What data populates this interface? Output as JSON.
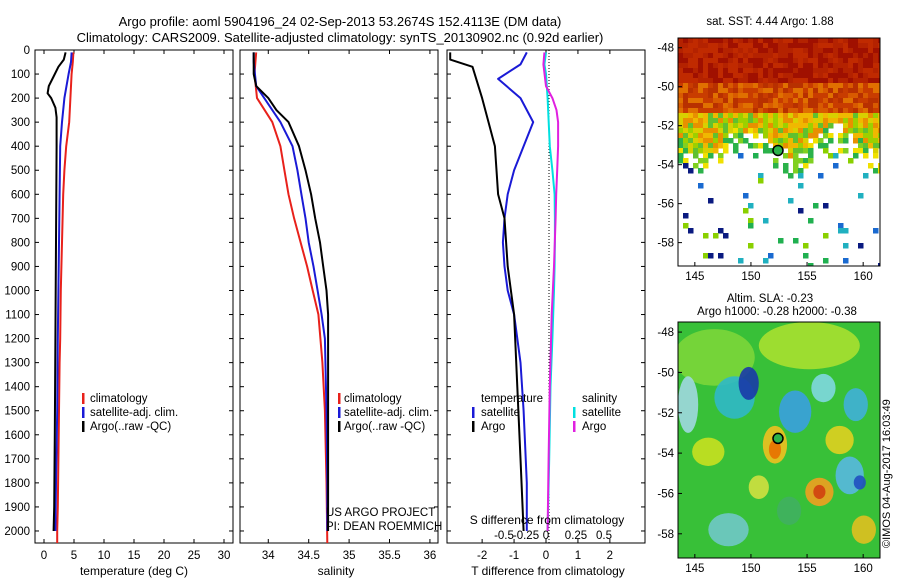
{
  "titles": {
    "line1": "Argo profile: aoml 5904196_24 02-Sep-2013 53.2674S 152.4113E (DM data)",
    "line2": "Climatology: CARS2009. Satellite-adjusted climatology: synTS_20130902.nc (0.92d earlier)"
  },
  "colors": {
    "climatology": "#e8211b",
    "satellite": "#1a1ad6",
    "argo": "#000000",
    "salinity_satellite": "#00e0e0",
    "salinity_argo": "#e020e0"
  },
  "chart_data": [
    {
      "type": "line",
      "panel": "temperature",
      "xlabel": "temperature (deg C)",
      "ylim": [
        0,
        2050
      ],
      "xlim": [
        -1.5,
        31.5
      ],
      "xticks": [
        "0",
        "5",
        "10",
        "15",
        "20",
        "25",
        "30"
      ],
      "yticks": [
        "0",
        "100",
        "200",
        "300",
        "400",
        "500",
        "600",
        "700",
        "800",
        "900",
        "1000",
        "1100",
        "1200",
        "1300",
        "1400",
        "1500",
        "1600",
        "1700",
        "1800",
        "1900",
        "2000"
      ],
      "legend": {
        "placement": "lower-right",
        "entries": [
          "climatology",
          "satellite-adj. clim.",
          "Argo(..raw -QC)"
        ]
      },
      "series": [
        {
          "name": "climatology",
          "color_key": "climatology",
          "x": [
            4.9,
            4.8,
            4.6,
            4.4,
            4.2,
            3.7,
            3.4,
            3.2,
            3.1,
            3.0,
            2.9,
            2.8,
            2.75,
            2.7,
            2.6,
            2.5,
            2.4,
            2.3,
            2.2,
            2.2
          ],
          "y": [
            10,
            50,
            100,
            200,
            300,
            400,
            500,
            600,
            700,
            800,
            900,
            1000,
            1100,
            1200,
            1300,
            1500,
            1700,
            1900,
            2000,
            2050
          ]
        },
        {
          "name": "satellite-adj. clim.",
          "color_key": "satellite",
          "x": [
            4.6,
            4.5,
            4.1,
            3.4,
            3.0,
            2.7,
            2.6,
            2.5,
            2.4,
            2.3,
            2.2,
            2.0,
            1.9
          ],
          "y": [
            10,
            50,
            100,
            200,
            300,
            400,
            600,
            800,
            1000,
            1200,
            1500,
            1800,
            2000
          ]
        },
        {
          "name": "Argo(..raw -QC)",
          "color_key": "argo",
          "x": [
            3.6,
            3.3,
            2.4,
            1.6,
            0.8,
            0.6,
            1.2,
            1.9,
            2.1,
            2.1,
            2.0,
            1.9,
            1.8,
            1.7,
            1.6
          ],
          "y": [
            10,
            40,
            70,
            110,
            150,
            180,
            200,
            240,
            280,
            400,
            800,
            1200,
            1600,
            1900,
            2000
          ]
        }
      ]
    },
    {
      "type": "line",
      "panel": "salinity",
      "xlabel": "salinity",
      "ylim": [
        0,
        2050
      ],
      "xlim": [
        33.65,
        36.1
      ],
      "xticks": [
        "34",
        "34.5",
        "35",
        "35.5",
        "36"
      ],
      "legend": {
        "placement": "lower-right",
        "entries": [
          "climatology",
          "satellite-adj. clim.",
          "Argo(..raw -QC)"
        ]
      },
      "annotation": [
        "US ARGO PROJECT",
        "PI: DEAN ROEMMICH"
      ],
      "series": [
        {
          "name": "climatology",
          "color_key": "climatology",
          "x": [
            33.85,
            33.84,
            33.83,
            33.86,
            34.05,
            34.15,
            34.2,
            34.25,
            34.32,
            34.4,
            34.48,
            34.55,
            34.62,
            34.67,
            34.7,
            34.72,
            34.73
          ],
          "y": [
            10,
            50,
            100,
            200,
            300,
            400,
            500,
            600,
            700,
            800,
            900,
            1000,
            1100,
            1300,
            1500,
            1800,
            2050
          ]
        },
        {
          "name": "satellite-adj. clim.",
          "color_key": "satellite",
          "x": [
            33.82,
            33.82,
            33.85,
            34.05,
            34.15,
            34.3,
            34.36,
            34.41,
            34.46,
            34.5,
            34.56,
            34.61,
            34.66,
            34.7,
            34.72,
            34.73,
            34.73
          ],
          "y": [
            10,
            50,
            150,
            250,
            300,
            400,
            500,
            600,
            700,
            800,
            900,
            1000,
            1100,
            1200,
            1500,
            1800,
            2000
          ]
        },
        {
          "name": "Argo(..raw -QC)",
          "color_key": "argo",
          "x": [
            33.82,
            33.82,
            33.85,
            34.0,
            34.1,
            34.25,
            34.38,
            34.46,
            34.53,
            34.58,
            34.64,
            34.68,
            34.72,
            34.74,
            34.74
          ],
          "y": [
            10,
            100,
            150,
            200,
            250,
            300,
            400,
            500,
            600,
            700,
            800,
            900,
            1000,
            1100,
            2000
          ]
        }
      ]
    },
    {
      "type": "line",
      "panel": "difference",
      "xlabel": "T difference from climatology",
      "top_xlabel": "S difference from climatology",
      "ylim": [
        0,
        2050
      ],
      "xlim": [
        -3.1,
        3.1
      ],
      "xticks": [
        "-2",
        "-1",
        "0",
        "1",
        "2"
      ],
      "top_xticks": [
        "-0.5",
        "-0.25",
        "0",
        "0.25",
        "0.5"
      ],
      "legend": {
        "placement": "lower-center",
        "temperature_title": "temperature",
        "salinity_title": "salinity",
        "temperature_entries": [
          "satellite",
          "Argo"
        ],
        "salinity_entries": [
          "satellite",
          "Argo"
        ]
      },
      "series": [
        {
          "name": "temperature satellite",
          "color_key": "satellite",
          "x": [
            -0.6,
            -0.8,
            -1.5,
            -0.8,
            -0.4,
            -0.7,
            -1.0,
            -1.2,
            -1.3,
            -1.35,
            -1.3,
            -1.2,
            -1.0,
            -0.8,
            -0.7,
            -0.6,
            -0.6
          ],
          "y": [
            10,
            60,
            120,
            200,
            300,
            400,
            500,
            600,
            700,
            800,
            900,
            1000,
            1100,
            1300,
            1500,
            1800,
            2000
          ]
        },
        {
          "name": "temperature Argo",
          "color_key": "argo",
          "x": [
            -3.0,
            -3.0,
            -2.3,
            -2.0,
            -1.8,
            -1.6,
            -1.55,
            -1.5,
            -1.3,
            -1.2,
            -1.0,
            -0.9,
            -0.8,
            -0.7
          ],
          "y": [
            10,
            40,
            70,
            200,
            300,
            400,
            500,
            600,
            700,
            900,
            1100,
            1400,
            1700,
            2000
          ]
        },
        {
          "name": "salinity satellite",
          "color_key": "salinity_satellite",
          "x": [
            0.0,
            -0.05,
            0.0,
            0.05,
            0.12,
            0.2,
            0.27,
            0.28,
            0.28,
            0.27,
            0.25,
            0.2,
            0.14,
            0.1,
            0.05
          ],
          "y": [
            10,
            60,
            100,
            200,
            400,
            500,
            600,
            700,
            800,
            900,
            1000,
            1200,
            1400,
            1700,
            2000
          ]
        },
        {
          "name": "salinity Argo",
          "color_key": "salinity_argo",
          "x": [
            -0.05,
            -0.08,
            0.0,
            0.2,
            0.33,
            0.38,
            0.38,
            0.35,
            0.32,
            0.3,
            0.25,
            0.18,
            0.12,
            0.08,
            0.05
          ],
          "y": [
            10,
            60,
            150,
            200,
            250,
            300,
            400,
            500,
            600,
            700,
            900,
            1100,
            1400,
            1700,
            2000
          ]
        }
      ]
    },
    {
      "type": "heatmap",
      "panel": "sst-map",
      "title": "sat. SST: 4.44  Argo: 1.88",
      "xticks": [
        "145",
        "150",
        "155",
        "160"
      ],
      "yticks": [
        "-48",
        "-50",
        "-52",
        "-54",
        "-56",
        "-58"
      ],
      "xlim": [
        143.5,
        161.5
      ],
      "ylim": [
        -59.2,
        -47.5
      ],
      "float_position": {
        "lon": 152.41,
        "lat": -53.27
      }
    },
    {
      "type": "heatmap",
      "panel": "sla-map",
      "title": "Altim. SLA: -0.23",
      "subtitle": "Argo h1000: -0.28 h2000: -0.38",
      "xticks": [
        "145",
        "150",
        "155",
        "160"
      ],
      "yticks": [
        "-48",
        "-50",
        "-52",
        "-54",
        "-56",
        "-58"
      ],
      "xlim": [
        143.5,
        161.5
      ],
      "ylim": [
        -59.2,
        -47.5
      ],
      "float_position": {
        "lon": 152.41,
        "lat": -53.27
      },
      "side_note": "©IMOS 04-Aug-2017 16:03:49"
    }
  ]
}
